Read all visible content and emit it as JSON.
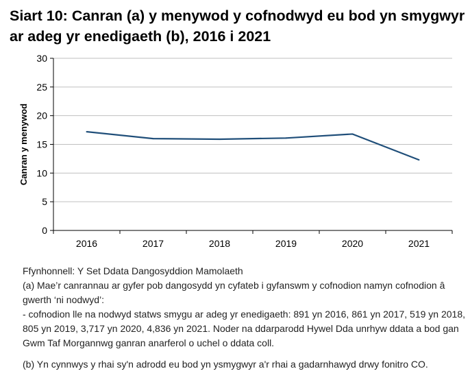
{
  "chart_data": {
    "type": "line",
    "title": "Siart 10: Canran (a) y menywod y cofnodwyd eu bod yn smygwyr ar adeg yr enedigaeth (b), 2016 i 2021",
    "xlabel": "",
    "ylabel": "Canran y menywod",
    "categories": [
      "2016",
      "2017",
      "2018",
      "2019",
      "2020",
      "2021"
    ],
    "series": [
      {
        "values": [
          17.2,
          16.0,
          15.9,
          16.1,
          16.8,
          12.3
        ],
        "color": "#1f4e79"
      }
    ],
    "ylim": [
      0,
      30
    ],
    "yticks": [
      0,
      5,
      10,
      15,
      20,
      25,
      30
    ],
    "grid": true,
    "legend": "none"
  },
  "notes": {
    "source": "Ffynhonnell: Y Set Ddata Dangosyddion Mamolaeth",
    "a1": "(a) Mae’r canrannau ar gyfer pob dangosydd yn cyfateb i gyfanswm y cofnodion namyn cofnodion â gwerth ‘ni nodwyd’:",
    "a2": " - cofnodion lle na nodwyd statws smygu ar adeg yr enedigaeth: 891 yn 2016, 861 yn 2017, 519 yn 2018, 805 yn 2019, 3,717 yn 2020, 4,836 yn 2021. Noder na ddarparodd Hywel Dda unrhyw ddata a bod gan Gwm Taf Morgannwg ganran anarferol o uchel o ddata coll.",
    "b": "(b) Yn cynnwys y rhai sy'n adrodd eu bod yn ysmygwyr a'r rhai a gadarnhawyd drwy fonitro CO."
  }
}
